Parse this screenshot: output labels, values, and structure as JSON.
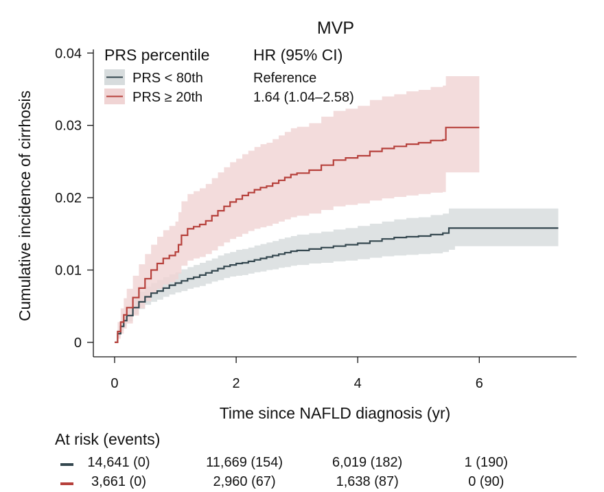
{
  "chart_data": {
    "type": "line",
    "subtype": "cumulative-incidence with 95% CI bands",
    "title": "MVP",
    "xlabel": "Time since NAFLD diagnosis (yr)",
    "ylabel": "Cumulative incidence of cirrhosis",
    "xlim": [
      -0.35,
      7.6
    ],
    "ylim": [
      -0.002,
      0.0405
    ],
    "xticks": [
      0,
      2,
      4,
      6
    ],
    "xtick_labels": [
      "0",
      "2",
      "4",
      "6"
    ],
    "yticks": [
      0,
      0.01,
      0.02,
      0.03,
      0.04
    ],
    "ytick_labels": [
      "0",
      "0.01",
      "0.02",
      "0.03",
      "0.04"
    ],
    "grid": false,
    "legend_title": "PRS percentile",
    "hr_header": "HR (95% CI)",
    "series": [
      {
        "name": "PRS < 80th",
        "hr": "Reference",
        "color": "#34474f",
        "band_color": "#d7dcdd",
        "x": [
          0,
          0.05,
          0.1,
          0.15,
          0.2,
          0.3,
          0.4,
          0.5,
          0.6,
          0.7,
          0.8,
          0.9,
          1.0,
          1.1,
          1.2,
          1.3,
          1.4,
          1.5,
          1.6,
          1.7,
          1.8,
          1.9,
          2.0,
          2.1,
          2.2,
          2.3,
          2.4,
          2.5,
          2.6,
          2.7,
          2.8,
          2.9,
          3.0,
          3.2,
          3.4,
          3.6,
          3.8,
          4.0,
          4.2,
          4.4,
          4.6,
          4.8,
          5.0,
          5.2,
          5.4,
          5.5,
          5.6,
          6.0,
          6.5,
          7.0,
          7.3
        ],
        "y": [
          0,
          0.0012,
          0.0022,
          0.003,
          0.0037,
          0.0048,
          0.0056,
          0.0063,
          0.0068,
          0.0071,
          0.0075,
          0.0079,
          0.0082,
          0.0085,
          0.0088,
          0.009,
          0.0093,
          0.0096,
          0.0099,
          0.0102,
          0.0105,
          0.0107,
          0.0109,
          0.011,
          0.0112,
          0.0114,
          0.0116,
          0.0118,
          0.012,
          0.0122,
          0.0124,
          0.0126,
          0.0127,
          0.0129,
          0.0131,
          0.0133,
          0.0135,
          0.0137,
          0.014,
          0.0143,
          0.0145,
          0.0146,
          0.0147,
          0.0149,
          0.0151,
          0.0158,
          0.0158,
          0.0158,
          0.0158,
          0.0158,
          0.0158
        ],
        "lower": [
          0,
          0.0008,
          0.0016,
          0.0023,
          0.0029,
          0.0039,
          0.0046,
          0.0052,
          0.0056,
          0.0059,
          0.0063,
          0.0066,
          0.0069,
          0.0071,
          0.0074,
          0.0076,
          0.0078,
          0.0081,
          0.0084,
          0.0086,
          0.0089,
          0.0091,
          0.0092,
          0.0093,
          0.0095,
          0.0097,
          0.0098,
          0.01,
          0.0101,
          0.0103,
          0.0104,
          0.0106,
          0.0107,
          0.0109,
          0.011,
          0.0112,
          0.0113,
          0.0115,
          0.0117,
          0.0119,
          0.012,
          0.0121,
          0.0122,
          0.0123,
          0.0125,
          0.0128,
          0.0133,
          0.0133,
          0.0133,
          0.0133,
          0.0133
        ],
        "upper": [
          0,
          0.0018,
          0.003,
          0.0039,
          0.0047,
          0.006,
          0.007,
          0.0077,
          0.0082,
          0.0086,
          0.009,
          0.0094,
          0.0097,
          0.0101,
          0.0104,
          0.0107,
          0.011,
          0.0113,
          0.0116,
          0.012,
          0.0123,
          0.0125,
          0.0128,
          0.0129,
          0.0131,
          0.0134,
          0.0136,
          0.0138,
          0.014,
          0.0143,
          0.0145,
          0.0147,
          0.0149,
          0.0151,
          0.0153,
          0.0156,
          0.0158,
          0.0161,
          0.0164,
          0.0167,
          0.017,
          0.0172,
          0.0173,
          0.0176,
          0.0178,
          0.0185,
          0.0185,
          0.0185,
          0.0185,
          0.0185,
          0.0185
        ]
      },
      {
        "name": "PRS ≥ 20th",
        "hr": "1.64 (1.04–2.58)",
        "color": "#b6403b",
        "band_color": "#f0d4d4",
        "x": [
          0,
          0.05,
          0.1,
          0.15,
          0.2,
          0.3,
          0.4,
          0.5,
          0.6,
          0.7,
          0.8,
          0.9,
          1.0,
          1.05,
          1.1,
          1.2,
          1.3,
          1.4,
          1.5,
          1.6,
          1.7,
          1.8,
          1.9,
          2.0,
          2.1,
          2.2,
          2.3,
          2.4,
          2.5,
          2.6,
          2.7,
          2.8,
          2.9,
          3.0,
          3.2,
          3.4,
          3.6,
          3.8,
          4.0,
          4.2,
          4.4,
          4.6,
          4.8,
          5.0,
          5.2,
          5.4,
          5.45,
          6.0
        ],
        "y": [
          0,
          0.0015,
          0.0028,
          0.0038,
          0.0048,
          0.0062,
          0.0075,
          0.0088,
          0.01,
          0.0109,
          0.0116,
          0.012,
          0.0125,
          0.0135,
          0.0148,
          0.0157,
          0.016,
          0.0163,
          0.0168,
          0.0175,
          0.0182,
          0.0188,
          0.0194,
          0.0198,
          0.0203,
          0.0207,
          0.0211,
          0.0214,
          0.0216,
          0.022,
          0.0224,
          0.0228,
          0.0232,
          0.0234,
          0.0238,
          0.0245,
          0.0252,
          0.0255,
          0.0258,
          0.0264,
          0.0268,
          0.0271,
          0.0274,
          0.0276,
          0.0279,
          0.028,
          0.0297,
          0.0297
        ],
        "lower": [
          0,
          0.0005,
          0.0012,
          0.0019,
          0.0026,
          0.0037,
          0.0047,
          0.0057,
          0.0067,
          0.0074,
          0.008,
          0.0083,
          0.0087,
          0.0095,
          0.0106,
          0.0113,
          0.0116,
          0.0118,
          0.0122,
          0.0127,
          0.0133,
          0.0138,
          0.0143,
          0.0146,
          0.015,
          0.0154,
          0.0157,
          0.0159,
          0.0161,
          0.0164,
          0.0167,
          0.017,
          0.0173,
          0.0175,
          0.0178,
          0.0183,
          0.0188,
          0.019,
          0.0192,
          0.0196,
          0.0199,
          0.0201,
          0.0203,
          0.0205,
          0.0207,
          0.0208,
          0.0235,
          0.0235
        ],
        "upper": [
          0,
          0.0028,
          0.0047,
          0.0061,
          0.0074,
          0.0092,
          0.0108,
          0.0122,
          0.0135,
          0.0146,
          0.0155,
          0.0161,
          0.0167,
          0.018,
          0.0195,
          0.0205,
          0.0209,
          0.0213,
          0.0219,
          0.0227,
          0.0235,
          0.0242,
          0.0249,
          0.0254,
          0.026,
          0.0265,
          0.027,
          0.0274,
          0.0276,
          0.0281,
          0.0286,
          0.0291,
          0.0296,
          0.0298,
          0.0303,
          0.0312,
          0.032,
          0.0323,
          0.0327,
          0.0335,
          0.034,
          0.0343,
          0.0347,
          0.0349,
          0.0353,
          0.0355,
          0.0368,
          0.0368
        ]
      }
    ]
  },
  "at_risk": {
    "title": "At risk (events)",
    "times": [
      0,
      2,
      4,
      6
    ],
    "rows": [
      {
        "color": "#34474f",
        "values": [
          "14,641 (0)",
          "11,669 (154)",
          "6,019 (182)",
          "1 (190)"
        ]
      },
      {
        "color": "#b6403b",
        "values": [
          "3,661 (0)",
          "2,960 (67)",
          "1,638 (87)",
          "0 (90)"
        ]
      }
    ]
  }
}
